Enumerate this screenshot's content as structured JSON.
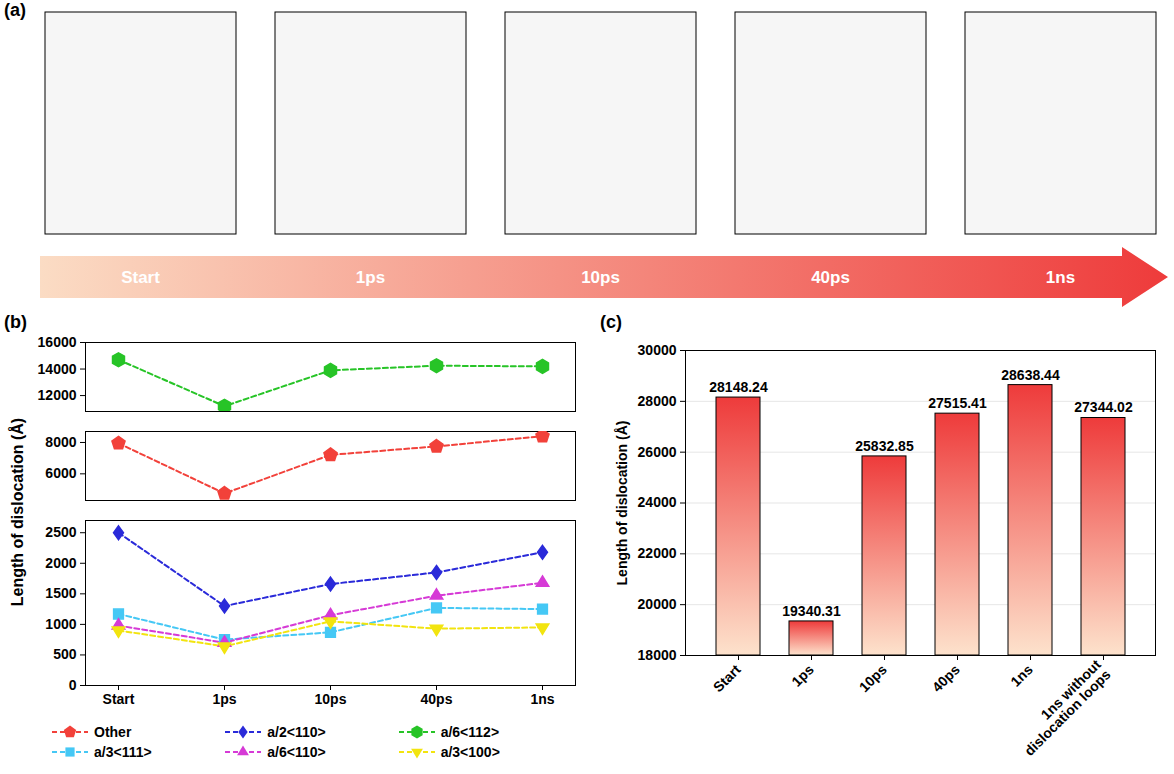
{
  "panel_a": {
    "title": "(a)",
    "stages": [
      "Start",
      "1ps",
      "10ps",
      "40ps",
      "1ns"
    ]
  },
  "chart_data": [
    {
      "type": "line",
      "title": "(b)",
      "x": [
        "Start",
        "1ps",
        "10ps",
        "40ps",
        "1ns"
      ],
      "ylabel": "Length of dislocation (Å)",
      "ylim": [
        [
          0,
          2700
        ],
        [
          4300,
          8700
        ],
        [
          10800,
          16000
        ]
      ],
      "yticks": [
        [
          0,
          500,
          1000,
          1500,
          2000,
          2500
        ],
        [
          6000,
          8000
        ],
        [
          12000,
          14000,
          16000
        ]
      ],
      "grid": false,
      "legend": "bottom",
      "line_style": "dashed",
      "series": [
        {
          "name": "Other",
          "color": "#f2413a",
          "marker": "pentagon",
          "values": [
            7950,
            4750,
            7210,
            7750,
            8400
          ]
        },
        {
          "name": "a/2<110>",
          "color": "#2a2ad9",
          "marker": "diamond",
          "values": [
            2500,
            1300,
            1660,
            1850,
            2180
          ]
        },
        {
          "name": "a/6<112>",
          "color": "#27c427",
          "marker": "hexagon",
          "values": [
            14700,
            11200,
            13900,
            14250,
            14200
          ]
        },
        {
          "name": "a/3<111>",
          "color": "#45c8f5",
          "marker": "square",
          "values": [
            1170,
            750,
            870,
            1270,
            1250
          ]
        },
        {
          "name": "a/6<110>",
          "color": "#d63ad6",
          "marker": "triangle",
          "values": [
            980,
            700,
            1150,
            1470,
            1680
          ]
        },
        {
          "name": "a/3<100>",
          "color": "#f2e40f",
          "marker": "triangle-down",
          "values": [
            900,
            640,
            1050,
            930,
            950
          ]
        }
      ]
    },
    {
      "type": "bar",
      "title": "(c)",
      "categories": [
        "Start",
        "1ps",
        "10ps",
        "40ps",
        "1ns",
        "1ns without dislocation loops"
      ],
      "values": [
        28148.24,
        19340.31,
        25832.85,
        27515.41,
        28638.44,
        27344.02
      ],
      "ylabel": "Length of dislocation (Å)",
      "ylim": [
        18000,
        30000
      ],
      "yticks": [
        18000,
        20000,
        22000,
        24000,
        26000,
        28000,
        30000
      ],
      "grid": true,
      "data_labels": true,
      "color": "#ee3b3b"
    }
  ]
}
